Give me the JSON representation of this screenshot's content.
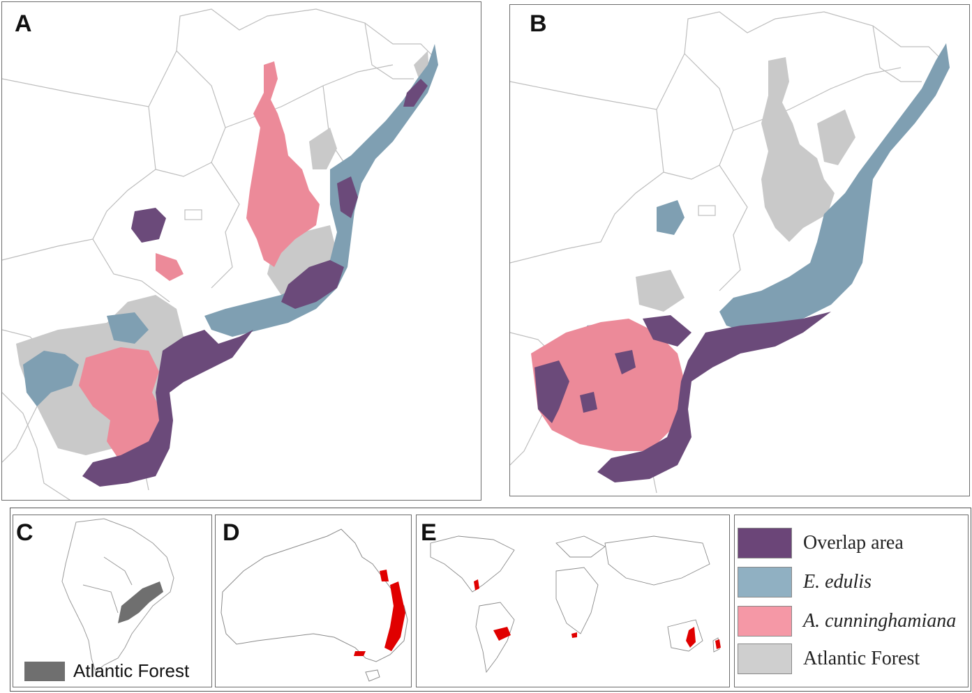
{
  "panels": {
    "a": {
      "letter": "A"
    },
    "b": {
      "letter": "B"
    },
    "c": {
      "letter": "C",
      "legend_label": "Atlantic Forest"
    },
    "d": {
      "letter": "D"
    },
    "e": {
      "letter": "E"
    }
  },
  "legend": {
    "items": [
      {
        "label": "Overlap area",
        "color": "#6b4578",
        "italic": false
      },
      {
        "label": "E. edulis",
        "color": "#90b0c2",
        "italic": true
      },
      {
        "label": "A. cunninghamiana",
        "color": "#f598a6",
        "italic": true
      },
      {
        "label": "Atlantic Forest",
        "color": "#cfcfcf",
        "italic": false
      }
    ]
  },
  "colors": {
    "overlap": "#6b4a7a",
    "edulis": "#7f9fb2",
    "cunninghamiana": "#ec8a99",
    "atlantic_forest": "#c9c9c9",
    "borders": "#b8b8b8",
    "distribution_red": "#e00000",
    "atlantic_forest_dark": "#6f6f6f"
  }
}
